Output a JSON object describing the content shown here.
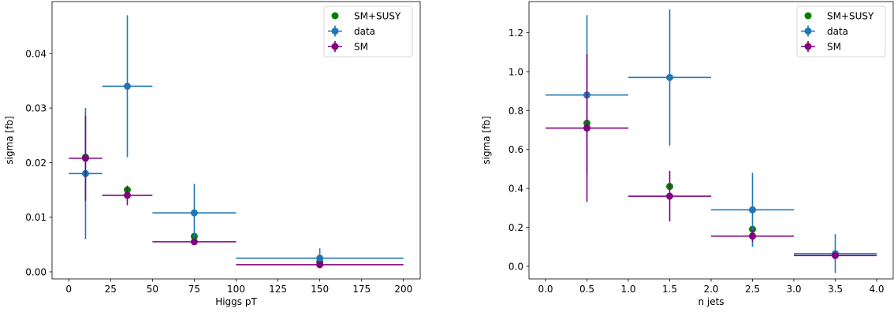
{
  "chart_data": [
    {
      "type": "scatter",
      "xlabel": "Higgs pT",
      "ylabel": "sigma [fb]",
      "xlim": [
        -10,
        210
      ],
      "ylim": [
        -0.0013,
        0.0495
      ],
      "xticks": [
        0,
        25,
        50,
        75,
        100,
        125,
        150,
        175,
        200
      ],
      "yticks": [
        0.0,
        0.01,
        0.02,
        0.03,
        0.04
      ],
      "xtick_labels": [
        "0",
        "25",
        "50",
        "75",
        "100",
        "125",
        "150",
        "175",
        "200"
      ],
      "ytick_labels": [
        "0.00",
        "0.01",
        "0.02",
        "0.03",
        "0.04"
      ],
      "grid": false,
      "legend_position": "top-right",
      "legend": [
        "SM+SUSY",
        "data",
        "SM"
      ],
      "series": [
        {
          "name": "SM+SUSY",
          "color": "#008000",
          "kind": "points",
          "x": [
            10,
            35,
            75,
            150
          ],
          "y": [
            0.021,
            0.015,
            0.0065,
            0.0018
          ]
        },
        {
          "name": "data",
          "color": "#1f77b4",
          "kind": "errorbar",
          "x": [
            10,
            35,
            75,
            150
          ],
          "xerr": [
            10,
            15,
            25,
            50
          ],
          "y": [
            0.018,
            0.034,
            0.0108,
            0.0025
          ],
          "yerr": [
            0.012,
            0.013,
            0.0053,
            0.0018
          ]
        },
        {
          "name": "SM",
          "color": "#800080",
          "kind": "errorbar",
          "x": [
            10,
            35,
            75,
            150
          ],
          "xerr": [
            10,
            15,
            25,
            50
          ],
          "y": [
            0.0208,
            0.014,
            0.0055,
            0.0013
          ],
          "yerr": [
            0.0078,
            0.0018,
            0.0004,
            0.0002
          ]
        }
      ]
    },
    {
      "type": "scatter",
      "xlabel": "n jets",
      "ylabel": "sigma [fb]",
      "xlim": [
        -0.2,
        4.2
      ],
      "ylim": [
        -0.065,
        1.36
      ],
      "xticks": [
        0.0,
        0.5,
        1.0,
        1.5,
        2.0,
        2.5,
        3.0,
        3.5,
        4.0
      ],
      "yticks": [
        0.0,
        0.2,
        0.4,
        0.6,
        0.8,
        1.0,
        1.2
      ],
      "xtick_labels": [
        "0.0",
        "0.5",
        "1.0",
        "1.5",
        "2.0",
        "2.5",
        "3.0",
        "3.5",
        "4.0"
      ],
      "ytick_labels": [
        "0.0",
        "0.2",
        "0.4",
        "0.6",
        "0.8",
        "1.0",
        "1.2"
      ],
      "grid": false,
      "legend_position": "top-right",
      "legend": [
        "SM+SUSY",
        "data",
        "SM"
      ],
      "series": [
        {
          "name": "SM+SUSY",
          "color": "#008000",
          "kind": "points",
          "x": [
            0.5,
            1.5,
            2.5,
            3.5
          ],
          "y": [
            0.735,
            0.41,
            0.19,
            0.06
          ]
        },
        {
          "name": "data",
          "color": "#1f77b4",
          "kind": "errorbar",
          "x": [
            0.5,
            1.5,
            2.5,
            3.5
          ],
          "xerr": [
            0.5,
            0.5,
            0.5,
            0.5
          ],
          "y": [
            0.88,
            0.97,
            0.29,
            0.065
          ],
          "yerr": [
            0.41,
            0.35,
            0.19,
            0.1
          ]
        },
        {
          "name": "SM",
          "color": "#800080",
          "kind": "errorbar",
          "x": [
            0.5,
            1.5,
            2.5,
            3.5
          ],
          "xerr": [
            0.5,
            0.5,
            0.5,
            0.5
          ],
          "y": [
            0.71,
            0.36,
            0.155,
            0.055
          ],
          "yerr": [
            0.38,
            0.13,
            0.03,
            0.005
          ]
        }
      ]
    }
  ]
}
